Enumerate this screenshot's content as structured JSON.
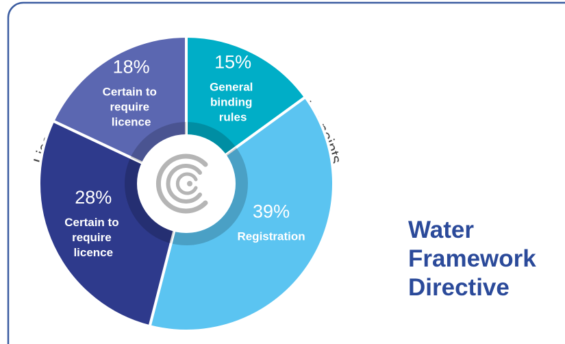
{
  "chart_data": {
    "type": "donut",
    "title": "Licence type anticipated for Irish Water abstraction points",
    "categories": [
      "General binding rules",
      "Registration",
      "Certain to require licence",
      "Certain to require licence"
    ],
    "values": [
      15,
      39,
      28,
      18
    ],
    "value_labels": [
      "15%",
      "39%",
      "28%",
      "18%"
    ],
    "colors": [
      "#00aec7",
      "#5bc4f1",
      "#2e3a8c",
      "#5b67b1"
    ],
    "annotation": "Water Framework Directive"
  }
}
